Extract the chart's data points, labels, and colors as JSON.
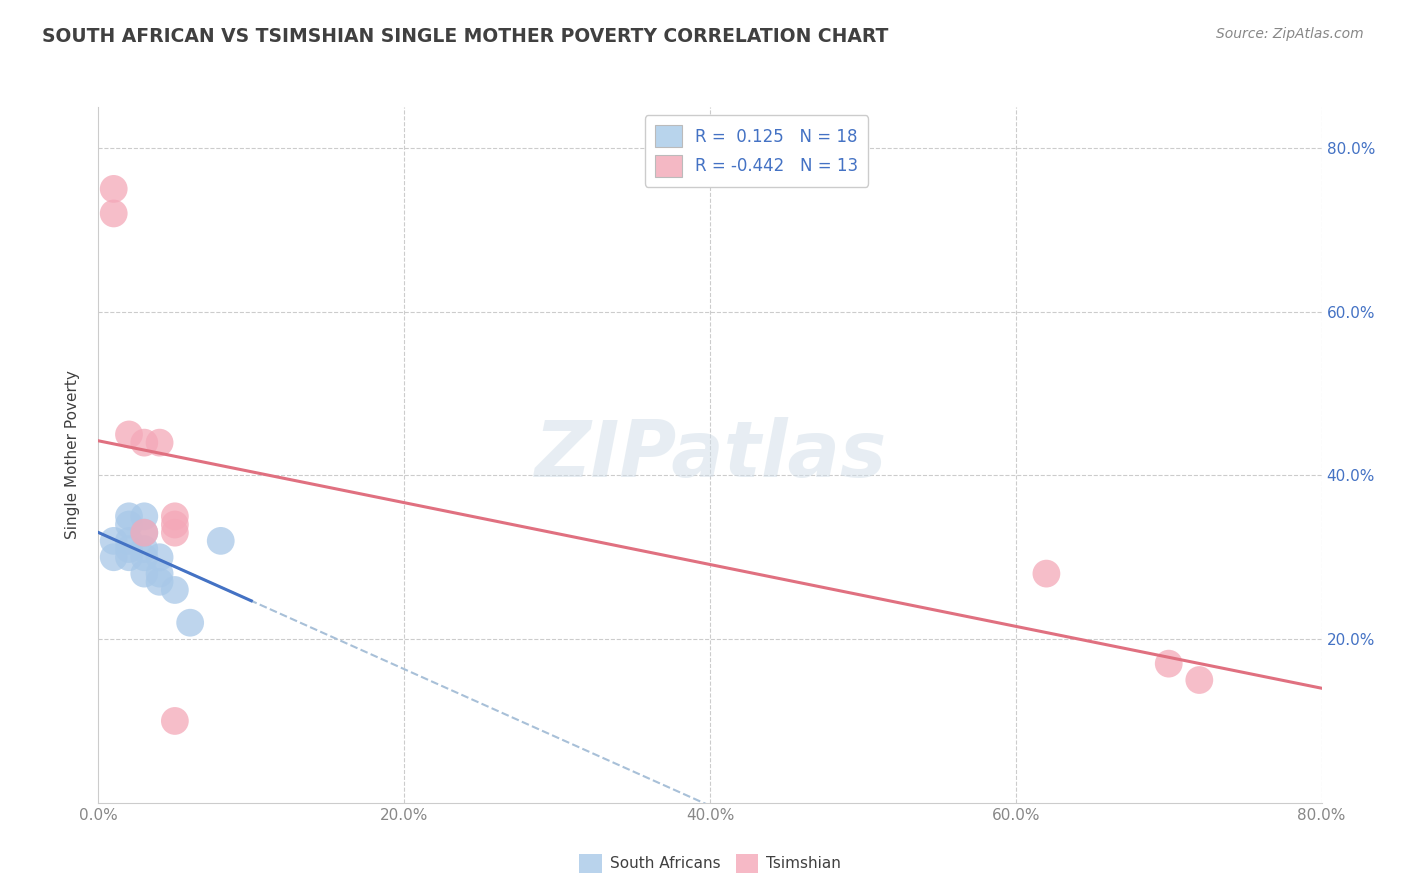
{
  "title": "SOUTH AFRICAN VS TSIMSHIAN SINGLE MOTHER POVERTY CORRELATION CHART",
  "source": "Source: ZipAtlas.com",
  "ylabel": "Single Mother Poverty",
  "xlim": [
    0.0,
    0.8
  ],
  "ylim": [
    0.0,
    0.85
  ],
  "xtick_vals": [
    0.0,
    0.2,
    0.4,
    0.6,
    0.8
  ],
  "xtick_labels": [
    "0.0%",
    "20.0%",
    "40.0%",
    "60.0%",
    "80.0%"
  ],
  "ytick_vals": [
    0.2,
    0.4,
    0.6,
    0.8
  ],
  "ytick_labels": [
    "20.0%",
    "40.0%",
    "60.0%",
    "80.0%"
  ],
  "blue_scatter_color": "#a8c8e8",
  "pink_scatter_color": "#f4a8b8",
  "blue_line_color": "#4472c4",
  "pink_line_color": "#e07080",
  "dash_line_color": "#a8c0d8",
  "legend_blue_fill": "#b8d4ec",
  "legend_pink_fill": "#f4b8c4",
  "R_blue": 0.125,
  "N_blue": 18,
  "R_pink": -0.442,
  "N_pink": 13,
  "watermark": "ZIPatlas",
  "south_african_x": [
    0.01,
    0.01,
    0.02,
    0.02,
    0.02,
    0.02,
    0.02,
    0.03,
    0.03,
    0.03,
    0.03,
    0.03,
    0.04,
    0.04,
    0.04,
    0.05,
    0.06,
    0.08
  ],
  "south_african_y": [
    0.3,
    0.32,
    0.3,
    0.31,
    0.32,
    0.34,
    0.35,
    0.28,
    0.3,
    0.31,
    0.33,
    0.35,
    0.27,
    0.28,
    0.3,
    0.26,
    0.22,
    0.32
  ],
  "tsimshian_x": [
    0.01,
    0.01,
    0.02,
    0.03,
    0.03,
    0.04,
    0.05,
    0.05,
    0.05,
    0.05,
    0.62,
    0.7,
    0.72
  ],
  "tsimshian_y": [
    0.72,
    0.75,
    0.45,
    0.44,
    0.33,
    0.44,
    0.33,
    0.34,
    0.35,
    0.1,
    0.28,
    0.17,
    0.15
  ],
  "legend_labels": [
    "South Africans",
    "Tsimshian"
  ],
  "background_color": "#ffffff",
  "grid_color": "#cccccc",
  "title_color": "#404040",
  "source_color": "#888888",
  "tick_color": "#888888"
}
